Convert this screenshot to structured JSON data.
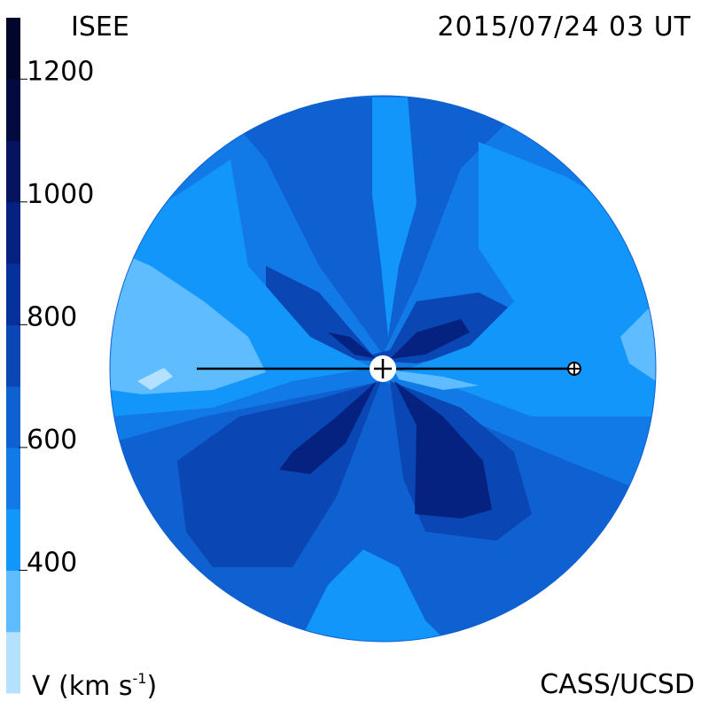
{
  "header": {
    "org": "ISEE",
    "timestamp": "2015/07/24 03 UT"
  },
  "footer": {
    "credit": "CASS/UCSD",
    "unit_label": "V (km s",
    "unit_exp": "-1",
    "unit_close": ")"
  },
  "chart_data": {
    "type": "heatmap",
    "title": "",
    "colorbar": {
      "label": "V (km s-1)",
      "range": [
        200,
        1300
      ],
      "ticks": [
        400,
        600,
        800,
        1000,
        1200
      ],
      "levels": [
        {
          "from": 200,
          "to": 300,
          "color": "#b4e1ff"
        },
        {
          "from": 300,
          "to": 400,
          "color": "#5ebcff"
        },
        {
          "from": 400,
          "to": 500,
          "color": "#1296fa"
        },
        {
          "from": 500,
          "to": 600,
          "color": "#127ae6"
        },
        {
          "from": 600,
          "to": 700,
          "color": "#0f60d0"
        },
        {
          "from": 700,
          "to": 800,
          "color": "#0a46b4"
        },
        {
          "from": 800,
          "to": 900,
          "color": "#06309a"
        },
        {
          "from": 900,
          "to": 1000,
          "color": "#062280"
        },
        {
          "from": 1000,
          "to": 1100,
          "color": "#04145e"
        },
        {
          "from": 1100,
          "to": 1200,
          "color": "#030a40"
        },
        {
          "from": 1200,
          "to": 1300,
          "color": "#02062a"
        }
      ]
    },
    "markers": [
      {
        "name": "sun",
        "symbol": "circled-plus"
      },
      {
        "name": "earth",
        "symbol": "circle-cross"
      }
    ]
  }
}
